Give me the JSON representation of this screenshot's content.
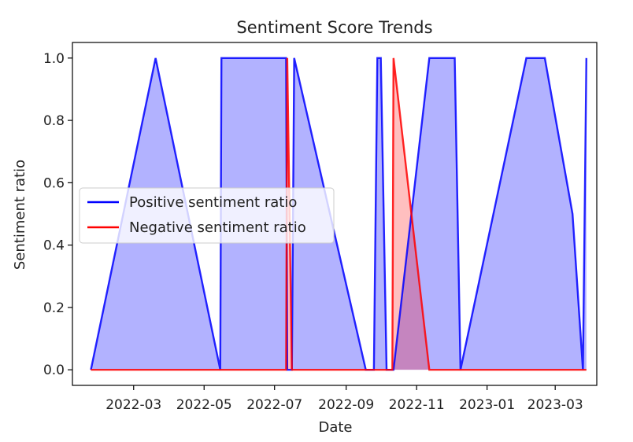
{
  "chart_data": {
    "type": "area",
    "title": "Sentiment Score Trends",
    "xlabel": "Date",
    "ylabel": "Sentiment ratio",
    "xlim": [
      "2022-01-07",
      "2023-04-06"
    ],
    "ylim": [
      -0.05,
      1.05
    ],
    "x_ticks": [
      "2022-03-01",
      "2022-05-01",
      "2022-07-01",
      "2022-09-01",
      "2022-11-01",
      "2023-01-01",
      "2023-03-01"
    ],
    "x_tick_labels": [
      "2022-03",
      "2022-05",
      "2022-07",
      "2022-09",
      "2022-11",
      "2023-01",
      "2023-03"
    ],
    "y_ticks": [
      0.0,
      0.2,
      0.4,
      0.6,
      0.8,
      1.0
    ],
    "y_tick_labels": [
      "0.0",
      "0.2",
      "0.4",
      "0.6",
      "0.8",
      "1.0"
    ],
    "grid": false,
    "legend_position": "center-left",
    "series": [
      {
        "name": "Positive sentiment ratio",
        "color": "#0000ff",
        "fill": "#0000ff",
        "fill_alpha": 0.3,
        "points": [
          [
            "2022-01-23",
            0.0
          ],
          [
            "2022-03-20",
            1.0
          ],
          [
            "2022-05-15",
            0.0
          ],
          [
            "2022-05-16",
            1.0
          ],
          [
            "2022-07-11",
            1.0
          ],
          [
            "2022-07-12",
            0.0
          ],
          [
            "2022-07-16",
            0.0
          ],
          [
            "2022-07-18",
            1.0
          ],
          [
            "2022-09-18",
            0.0
          ],
          [
            "2022-09-25",
            0.0
          ],
          [
            "2022-09-28",
            1.0
          ],
          [
            "2022-10-01",
            1.0
          ],
          [
            "2022-10-06",
            0.0
          ],
          [
            "2022-10-11",
            0.0
          ],
          [
            "2022-10-12",
            0.0
          ],
          [
            "2022-11-12",
            1.0
          ],
          [
            "2022-12-04",
            1.0
          ],
          [
            "2022-12-09",
            0.0
          ],
          [
            "2023-02-04",
            1.0
          ],
          [
            "2023-02-20",
            1.0
          ],
          [
            "2023-03-16",
            0.5
          ],
          [
            "2023-03-25",
            0.0
          ],
          [
            "2023-03-28",
            1.0
          ]
        ]
      },
      {
        "name": "Negative sentiment ratio",
        "color": "#ff0000",
        "fill": "#ff0000",
        "fill_alpha": 0.25,
        "points": [
          [
            "2022-01-23",
            0.0
          ],
          [
            "2022-07-11",
            0.0
          ],
          [
            "2022-07-12",
            1.0
          ],
          [
            "2022-07-16",
            0.0
          ],
          [
            "2022-10-11",
            0.0
          ],
          [
            "2022-10-12",
            1.0
          ],
          [
            "2022-11-12",
            0.0
          ],
          [
            "2023-03-28",
            0.0
          ]
        ]
      }
    ]
  }
}
